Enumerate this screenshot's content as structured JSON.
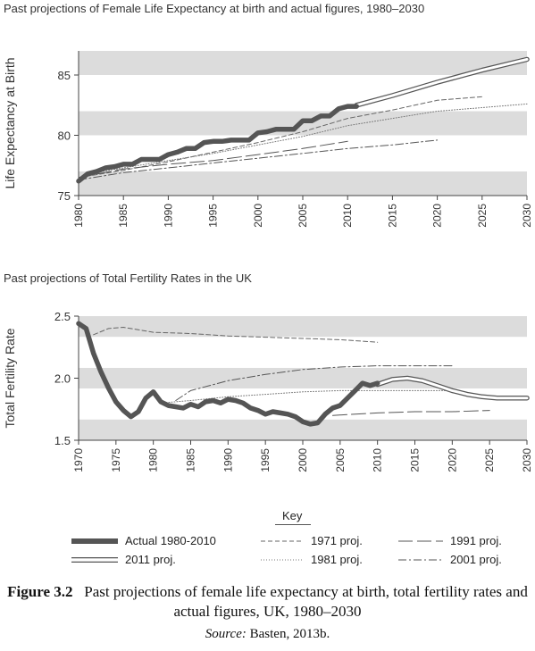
{
  "chart_data": [
    {
      "type": "line",
      "title": "Past projections of Female Life Expectancy at birth and actual figures, 1980–2030",
      "ylabel": "Life Expectancy at Birth",
      "xlabel": "",
      "xlim": [
        1980,
        2030
      ],
      "ylim": [
        75,
        87
      ],
      "x_ticks": [
        "1980",
        "1985",
        "1990",
        "1995",
        "2000",
        "2005",
        "2010",
        "2015",
        "2020",
        "2025",
        "2030"
      ],
      "y_ticks": [
        "75",
        "80",
        "85"
      ],
      "grid": "alternating grey horizontal bands",
      "series": [
        {
          "name": "Actual 1980-2010",
          "style": "thick",
          "x": [
            1980,
            1981,
            1982,
            1983,
            1984,
            1985,
            1986,
            1987,
            1988,
            1989,
            1990,
            1991,
            1992,
            1993,
            1994,
            1995,
            1996,
            1997,
            1998,
            1999,
            2000,
            2001,
            2002,
            2003,
            2004,
            2005,
            2006,
            2007,
            2008,
            2009,
            2010,
            2011
          ],
          "y": [
            76.2,
            76.8,
            77.0,
            77.3,
            77.4,
            77.6,
            77.6,
            78.0,
            78.0,
            78.0,
            78.4,
            78.6,
            78.9,
            78.9,
            79.4,
            79.5,
            79.5,
            79.6,
            79.6,
            79.6,
            80.2,
            80.3,
            80.5,
            80.5,
            80.5,
            81.2,
            81.2,
            81.6,
            81.6,
            82.2,
            82.4,
            82.4
          ]
        },
        {
          "name": "2011 proj.",
          "style": "double",
          "x": [
            2011,
            2015,
            2020,
            2025,
            2030
          ],
          "y": [
            82.5,
            83.3,
            84.4,
            85.4,
            86.3
          ]
        },
        {
          "name": "1971 proj.",
          "style": "dash",
          "x": [
            1980,
            1985,
            1990,
            1995,
            2000,
            2005,
            2010,
            2015,
            2020,
            2025
          ],
          "y": [
            76.5,
            77.1,
            77.8,
            78.6,
            79.4,
            80.3,
            81.4,
            82.1,
            82.9,
            83.2
          ]
        },
        {
          "name": "1981 proj.",
          "style": "dot",
          "x": [
            1981,
            1985,
            1990,
            1995,
            2000,
            2005,
            2010,
            2015,
            2020,
            2025,
            2030
          ],
          "y": [
            76.8,
            77.3,
            77.9,
            78.5,
            79.2,
            79.9,
            80.8,
            81.4,
            82.0,
            82.3,
            82.6
          ]
        },
        {
          "name": "1991 proj.",
          "style": "longdash",
          "x": [
            1980,
            1985,
            1990,
            1995,
            2000,
            2005,
            2010
          ],
          "y": [
            76.5,
            77.2,
            77.6,
            77.9,
            78.4,
            78.9,
            79.5
          ]
        },
        {
          "name": "2001 proj.",
          "style": "dashdot",
          "x": [
            1980,
            1985,
            1990,
            1995,
            2000,
            2005,
            2010,
            2015,
            2020
          ],
          "y": [
            76.3,
            76.9,
            77.3,
            77.7,
            78.1,
            78.5,
            78.9,
            79.2,
            79.6
          ]
        }
      ]
    },
    {
      "type": "line",
      "title": "Past projections of Total Fertility Rates in the UK",
      "ylabel": "Total Fertility Rate",
      "xlabel": "",
      "xlim": [
        1970,
        2030
      ],
      "ylim": [
        1.5,
        2.5
      ],
      "x_ticks": [
        "1970",
        "1975",
        "1980",
        "1985",
        "1990",
        "1995",
        "2000",
        "2005",
        "2010",
        "2015",
        "2020",
        "2025",
        "2030"
      ],
      "y_ticks": [
        "1.5",
        "2.0",
        "2.5"
      ],
      "grid": "alternating grey horizontal bands",
      "series": [
        {
          "name": "Actual 1980-2010",
          "style": "thick",
          "x": [
            1970,
            1971,
            1972,
            1973,
            1974,
            1975,
            1976,
            1977,
            1978,
            1979,
            1980,
            1981,
            1982,
            1983,
            1984,
            1985,
            1986,
            1987,
            1988,
            1989,
            1990,
            1991,
            1992,
            1993,
            1994,
            1995,
            1996,
            1997,
            1998,
            1999,
            2000,
            2001,
            2002,
            2003,
            2004,
            2005,
            2006,
            2007,
            2008,
            2009,
            2010
          ],
          "y": [
            2.44,
            2.4,
            2.2,
            2.05,
            1.92,
            1.81,
            1.74,
            1.69,
            1.73,
            1.84,
            1.89,
            1.81,
            1.78,
            1.77,
            1.76,
            1.79,
            1.77,
            1.81,
            1.82,
            1.8,
            1.83,
            1.82,
            1.8,
            1.76,
            1.74,
            1.71,
            1.73,
            1.72,
            1.71,
            1.69,
            1.65,
            1.63,
            1.64,
            1.71,
            1.76,
            1.78,
            1.84,
            1.9,
            1.96,
            1.94,
            1.96
          ]
        },
        {
          "name": "2011 proj.",
          "style": "double",
          "x": [
            2010,
            2012,
            2014,
            2016,
            2018,
            2020,
            2022,
            2024,
            2026,
            2028,
            2030
          ],
          "y": [
            1.95,
            1.99,
            2.0,
            1.98,
            1.94,
            1.9,
            1.87,
            1.85,
            1.84,
            1.84,
            1.84
          ]
        },
        {
          "name": "1971 proj.",
          "style": "dash",
          "x": [
            1972,
            1974,
            1976,
            1978,
            1980,
            1985,
            1990,
            1995,
            2000,
            2005,
            2010
          ],
          "y": [
            2.35,
            2.4,
            2.41,
            2.39,
            2.37,
            2.36,
            2.34,
            2.33,
            2.32,
            2.31,
            2.29
          ]
        },
        {
          "name": "1981 proj.",
          "style": "dot",
          "x": [
            1981,
            1985,
            1990,
            1995,
            2000,
            2005,
            2010,
            2015,
            2020
          ],
          "y": [
            1.8,
            1.82,
            1.85,
            1.87,
            1.89,
            1.9,
            1.9,
            1.9,
            1.9
          ]
        },
        {
          "name": "1991 proj.",
          "style": "longdash",
          "x": [
            2004,
            2010,
            2015,
            2020,
            2025
          ],
          "y": [
            1.7,
            1.72,
            1.73,
            1.73,
            1.74
          ]
        },
        {
          "name": "2001 proj.",
          "style": "dashdot",
          "x": [
            1983,
            1985,
            1990,
            1995,
            2000,
            2005,
            2010,
            2015,
            2020
          ],
          "y": [
            1.82,
            1.9,
            1.98,
            2.03,
            2.07,
            2.09,
            2.1,
            2.1,
            2.1
          ]
        }
      ]
    }
  ],
  "key": {
    "title": "Key",
    "items": [
      "Actual 1980-2010",
      "1971 proj.",
      "1991 proj.",
      "2011 proj.",
      "1981 proj.",
      "2001 proj."
    ]
  },
  "caption": {
    "figure_number": "Figure 3.2",
    "text": "Past projections of female life expectancy at birth, total fertility rates and actual figures, UK, 1980–2030",
    "source_label": "Source:",
    "source_text": "Basten, 2013b."
  }
}
